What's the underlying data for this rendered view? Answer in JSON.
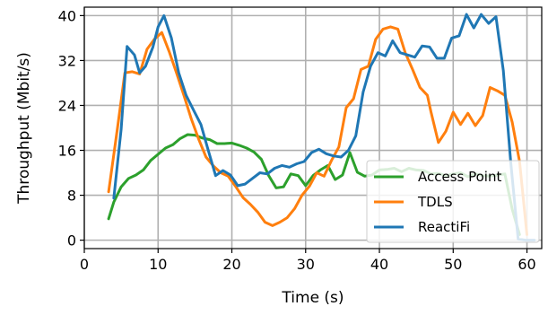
{
  "chart_data": {
    "type": "line",
    "xlabel": "Time (s)",
    "ylabel": "Throughput (Mbit/s)",
    "xlim": [
      0,
      62
    ],
    "ylim": [
      -1.5,
      41.5
    ],
    "xticks": [
      0,
      10,
      20,
      30,
      40,
      50,
      60
    ],
    "yticks": [
      0,
      8,
      16,
      24,
      32,
      40
    ],
    "grid": true,
    "legend_position": "lower-right",
    "series": [
      {
        "name": "Access Point",
        "color": "#2ca02c",
        "x": [
          3.3,
          4.0,
          5.0,
          6.0,
          7.0,
          8.0,
          9.0,
          10.0,
          11.0,
          12.0,
          13.0,
          14.0,
          15.0,
          16.0,
          17.0,
          18.0,
          19.0,
          20.0,
          21.0,
          22.0,
          23.0,
          24.0,
          25.0,
          26.0,
          27.0,
          28.0,
          29.0,
          30.0,
          31.0,
          32.0,
          33.0,
          34.0,
          35.0,
          36.0,
          37.0,
          38.0,
          39.0,
          40.0,
          41.0,
          42.0,
          43.0,
          44.0,
          45.0,
          46.0,
          47.0,
          48.0,
          49.0,
          50.0,
          51.0,
          52.0,
          53.0,
          54.0,
          55.0,
          56.0,
          57.0,
          58.0,
          59.0
        ],
        "y": [
          3.8,
          6.8,
          9.5,
          11.0,
          11.6,
          12.5,
          14.2,
          15.3,
          16.4,
          17.0,
          18.1,
          18.8,
          18.7,
          18.2,
          17.9,
          17.2,
          17.2,
          17.3,
          16.9,
          16.4,
          15.7,
          14.4,
          11.5,
          9.3,
          9.5,
          11.8,
          11.5,
          9.7,
          11.5,
          12.5,
          13.3,
          10.8,
          11.6,
          15.6,
          12.1,
          11.4,
          11.6,
          12.5,
          12.6,
          12.8,
          12.2,
          12.8,
          12.5,
          12.4,
          11.8,
          11.9,
          11.5,
          11.8,
          12.0,
          11.3,
          11.8,
          11.5,
          11.4,
          11.6,
          11.8,
          5.5,
          1.0
        ]
      },
      {
        "name": "TDLS",
        "color": "#ff7f0e",
        "x": [
          3.3,
          4.5,
          5.5,
          6.5,
          7.5,
          8.5,
          9.5,
          10.5,
          11.5,
          12.5,
          13.5,
          14.5,
          15.5,
          16.5,
          17.5,
          18.5,
          19.5,
          20.5,
          21.5,
          22.5,
          23.5,
          24.5,
          25.5,
          26.5,
          27.5,
          28.5,
          29.5,
          30.5,
          31.5,
          32.5,
          33.5,
          34.5,
          35.5,
          36.5,
          37.5,
          38.5,
          39.5,
          40.5,
          41.5,
          42.5,
          43.5,
          44.5,
          45.5,
          46.5,
          47.0,
          48.0,
          49.0,
          50.0,
          51.0,
          52.0,
          53.0,
          54.0,
          55.0,
          56.0,
          57.0,
          58.0,
          59.0,
          60.0
        ],
        "y": [
          8.6,
          20.0,
          29.8,
          30.0,
          29.6,
          34.0,
          35.8,
          37.0,
          33.6,
          29.8,
          25.8,
          21.6,
          18.0,
          14.8,
          13.2,
          12.0,
          11.4,
          9.6,
          7.6,
          6.4,
          5.0,
          3.2,
          2.6,
          3.2,
          4.0,
          5.6,
          8.0,
          9.6,
          12.0,
          11.4,
          14.2,
          16.6,
          23.6,
          25.2,
          30.4,
          31.0,
          35.8,
          37.6,
          38.0,
          37.6,
          33.4,
          30.4,
          27.2,
          25.8,
          22.8,
          17.4,
          19.4,
          22.8,
          20.6,
          22.6,
          20.4,
          22.2,
          27.2,
          26.6,
          25.8,
          21.0,
          14.0,
          1.0
        ]
      },
      {
        "name": "ReactiFi",
        "color": "#1f77b4",
        "x": [
          4.0,
          5.0,
          5.8,
          6.8,
          7.5,
          8.3,
          9.3,
          10.0,
          10.8,
          11.8,
          12.8,
          13.8,
          14.8,
          15.8,
          16.8,
          17.8,
          18.8,
          19.8,
          20.8,
          21.8,
          22.8,
          23.8,
          24.8,
          25.8,
          26.8,
          27.8,
          28.8,
          29.8,
          30.8,
          31.8,
          32.8,
          33.8,
          34.8,
          35.8,
          36.8,
          37.8,
          38.8,
          39.8,
          40.8,
          41.8,
          42.8,
          43.8,
          44.8,
          45.8,
          46.8,
          47.8,
          48.8,
          49.8,
          50.8,
          51.8,
          52.8,
          53.8,
          54.8,
          55.8,
          56.8,
          57.8,
          58.8,
          59.8,
          61.0
        ],
        "y": [
          7.5,
          19.8,
          34.5,
          33.0,
          29.8,
          31.0,
          34.4,
          38.0,
          40.0,
          36.0,
          29.8,
          25.8,
          23.2,
          20.6,
          16.0,
          11.5,
          12.4,
          11.6,
          9.7,
          10.0,
          11.0,
          12.0,
          11.8,
          12.8,
          13.3,
          13.0,
          13.6,
          14.0,
          15.6,
          16.2,
          15.4,
          15.0,
          14.8,
          16.0,
          18.6,
          26.4,
          31.0,
          33.4,
          32.8,
          35.5,
          33.4,
          33.0,
          32.6,
          34.6,
          34.4,
          32.4,
          32.4,
          36.0,
          36.4,
          40.2,
          37.8,
          40.2,
          38.6,
          39.8,
          30.2,
          13.8,
          0.2,
          0.0,
          0.0
        ]
      }
    ]
  }
}
